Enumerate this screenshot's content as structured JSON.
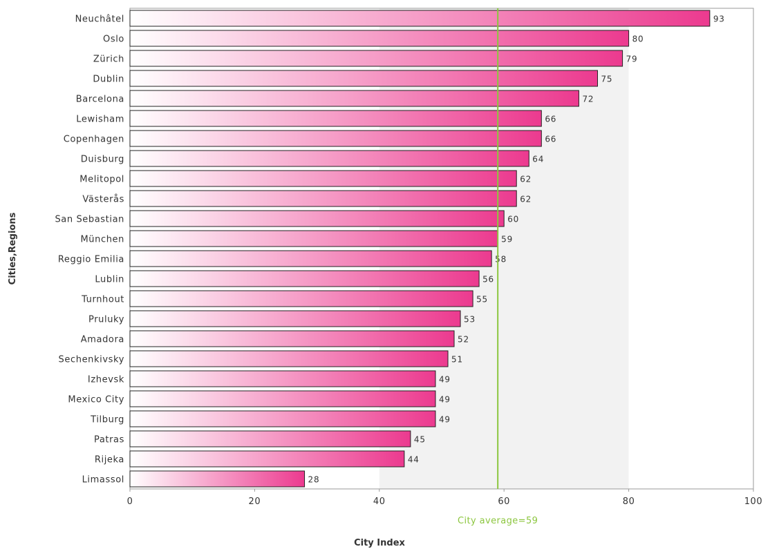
{
  "chart_data": {
    "type": "bar",
    "orientation": "horizontal",
    "categories": [
      "Neuchâtel",
      "Oslo",
      "Zürich",
      "Dublin",
      "Barcelona",
      "Lewisham",
      "Copenhagen",
      "Duisburg",
      "Melitopol",
      "Västerås",
      "San Sebastian",
      "München",
      "Reggio Emilia",
      "Lublin",
      "Turnhout",
      "Pruluky",
      "Amadora",
      "Sechenkivsky",
      "Izhevsk",
      "Mexico City",
      "Tilburg",
      "Patras",
      "Rijeka",
      "Limassol"
    ],
    "values": [
      93,
      80,
      79,
      75,
      72,
      66,
      66,
      64,
      62,
      62,
      60,
      59,
      58,
      56,
      55,
      53,
      52,
      51,
      49,
      49,
      49,
      45,
      44,
      28
    ],
    "xlabel": "City Index",
    "ylabel": "Cities,Regions",
    "xlim": [
      0,
      100
    ],
    "xticks": [
      0,
      20,
      40,
      60,
      80,
      100
    ],
    "xtick_labels": [
      "0",
      "20",
      "40",
      "60",
      "80",
      "100"
    ],
    "shaded_band": [
      40,
      80
    ],
    "reference_line": {
      "value": 59,
      "label": "City average=59"
    },
    "grid": false,
    "legend": "none",
    "colors": {
      "bar_start": "#ffffff",
      "bar_end": "#ec3a8f",
      "bar_border": "#222222",
      "average_line": "#8cc63f",
      "band": "#f2f2f2"
    }
  }
}
